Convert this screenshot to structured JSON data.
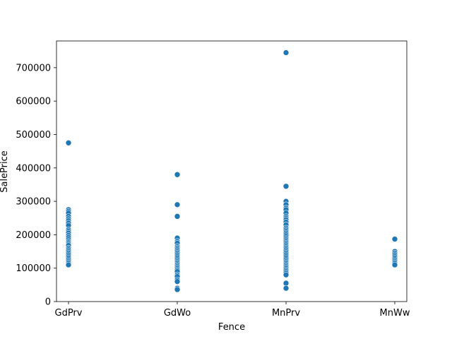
{
  "chart_data": {
    "type": "scatter",
    "xlabel": "Fence",
    "ylabel": "SalePrice",
    "categories": [
      "GdPrv",
      "GdWo",
      "MnPrv",
      "MnWw"
    ],
    "ylim": [
      0,
      780000
    ],
    "yticks": [
      0,
      100000,
      200000,
      300000,
      400000,
      500000,
      600000,
      700000
    ],
    "ytick_labels": [
      "0",
      "100000",
      "200000",
      "300000",
      "400000",
      "500000",
      "600000",
      "700000"
    ],
    "grid": false,
    "marker_color": "#1f77b4",
    "points": [
      {
        "category": "GdPrv",
        "values": [
          475000,
          275000,
          270000,
          265000,
          255000,
          248000,
          242000,
          235000,
          228000,
          215000,
          210000,
          205000,
          198000,
          192000,
          186000,
          180000,
          176000,
          172000,
          168000,
          160000,
          155000,
          150000,
          145000,
          140000,
          135000,
          130000,
          125000,
          120000,
          115000,
          110000
        ]
      },
      {
        "category": "GdWo",
        "values": [
          380000,
          290000,
          255000,
          190000,
          180000,
          175000,
          165000,
          160000,
          155000,
          150000,
          145000,
          140000,
          135000,
          130000,
          125000,
          120000,
          115000,
          110000,
          105000,
          100000,
          95000,
          90000,
          80000,
          75000,
          65000,
          60000,
          40000,
          36000
        ]
      },
      {
        "category": "MnPrv",
        "values": [
          745000,
          345000,
          300000,
          290000,
          280000,
          275000,
          265000,
          255000,
          250000,
          245000,
          238000,
          230000,
          220000,
          215000,
          210000,
          205000,
          200000,
          195000,
          190000,
          185000,
          180000,
          175000,
          170000,
          165000,
          160000,
          155000,
          150000,
          145000,
          140000,
          135000,
          130000,
          125000,
          120000,
          115000,
          110000,
          105000,
          100000,
          95000,
          90000,
          85000,
          80000,
          55000,
          40000
        ]
      },
      {
        "category": "MnWw",
        "values": [
          187000,
          150000,
          145000,
          140000,
          135000,
          130000,
          125000,
          120000,
          115000,
          110000
        ]
      }
    ]
  }
}
